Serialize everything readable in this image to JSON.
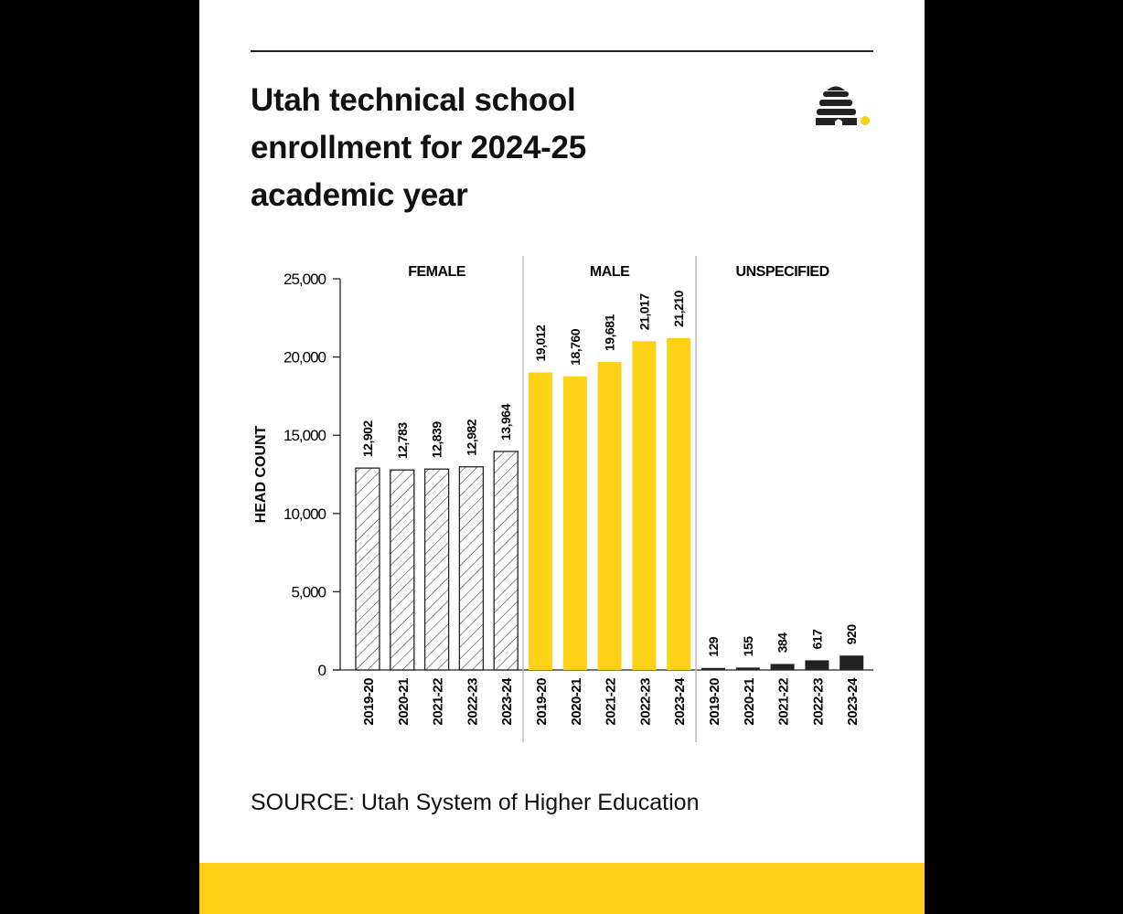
{
  "title": "Utah technical school enrollment for 2024-25 academic year",
  "source": "SOURCE: Utah System of Higher Education",
  "logo": "beehive-logo",
  "colors": {
    "male": "#fcd116",
    "unspecified": "#222222",
    "female": "hatched-white",
    "footer": "#fcd116"
  },
  "chart_data": {
    "type": "bar",
    "ylabel": "HEAD COUNT",
    "ylim": [
      0,
      25000
    ],
    "yticks": [
      "0",
      "5,000",
      "10,000",
      "15,000",
      "20,000",
      "25,000"
    ],
    "grid": false,
    "categories": [
      "2019-20",
      "2020-21",
      "2021-22",
      "2022-23",
      "2023-24"
    ],
    "series": [
      {
        "name": "FEMALE",
        "values": [
          12902,
          12783,
          12839,
          12982,
          13964
        ],
        "labels": [
          "12,902",
          "12,783",
          "12,839",
          "12,982",
          "13,964"
        ]
      },
      {
        "name": "MALE",
        "values": [
          19012,
          18760,
          19681,
          21017,
          21210
        ],
        "labels": [
          "19,012",
          "18,760",
          "19,681",
          "21,017",
          "21,210"
        ]
      },
      {
        "name": "UNSPECIFIED",
        "values": [
          129,
          155,
          384,
          617,
          920
        ],
        "labels": [
          "129",
          "155",
          "384",
          "617",
          "920"
        ]
      }
    ]
  }
}
